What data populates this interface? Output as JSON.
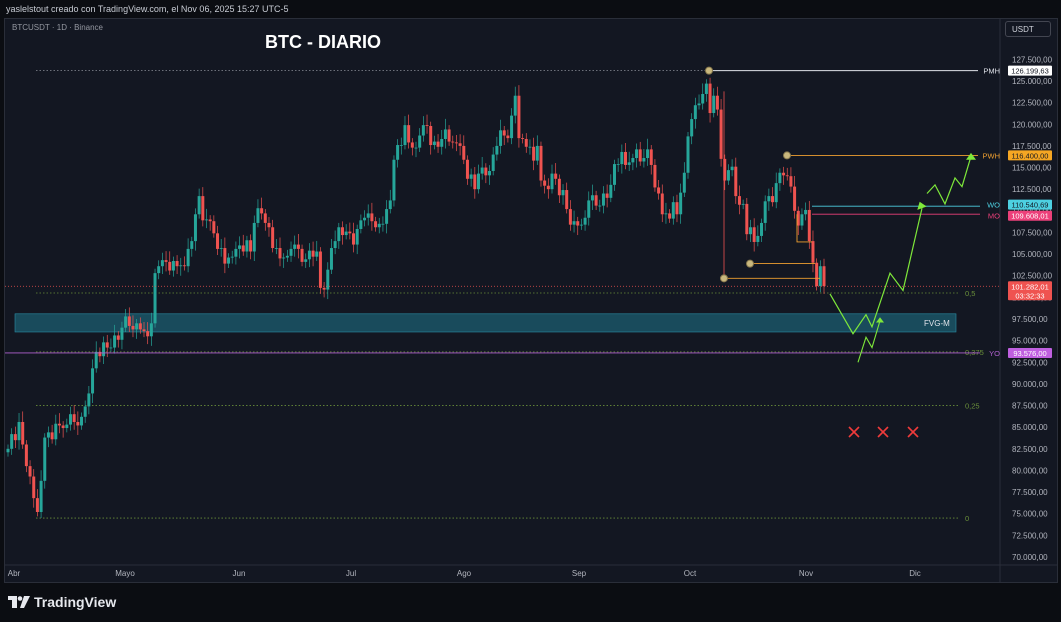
{
  "header": {
    "credit": "yaslelstout creado con TradingView.com, el Nov 06, 2025 15:27 UTC-5"
  },
  "symbol_line": "BTCUSDT · 1D · Binance",
  "chart_title": "BTC - DIARIO",
  "currency_button": "USDT",
  "brand": "TradingView",
  "colors": {
    "background": "#131722",
    "up": "#26a69a",
    "down": "#ef5350",
    "fvg": "#1d5a6a",
    "arrow": "#7ee83a"
  },
  "chart_data": {
    "type": "candlestick",
    "x_tick_labels": [
      "Abr",
      "Mayo",
      "Jun",
      "Jul",
      "Ago",
      "Sep",
      "Oct",
      "Nov",
      "Dic"
    ],
    "y_tick_labels": [
      "127.500,00",
      "125.000,00",
      "122.500,00",
      "120.000,00",
      "117.500,00",
      "115.000,00",
      "112.500,00",
      "110.000,00",
      "107.500,00",
      "105.000,00",
      "102.500,00",
      "100.000,00",
      "97.500,00",
      "95.000,00",
      "92.500,00",
      "90.000,00",
      "87.500,00",
      "85.000,00",
      "82.500,00",
      "80.000,00",
      "77.500,00",
      "75.000,00",
      "72.500,00",
      "70.000,00"
    ],
    "y_ticks": [
      127500,
      125000,
      122500,
      120000,
      117500,
      115000,
      112500,
      110000,
      107500,
      105000,
      102500,
      100000,
      97500,
      95000,
      92500,
      90000,
      87500,
      85000,
      82500,
      80000,
      77500,
      75000,
      72500,
      70000
    ],
    "ylim": [
      68000,
      130000
    ],
    "price_labels": [
      {
        "tag": "PMH",
        "label": "126.199,63",
        "value": 126199.63
      },
      {
        "tag": "PWH",
        "label": "116.400,00",
        "value": 116400
      },
      {
        "tag": "WO",
        "label": "110.540,69",
        "value": 110540.69
      },
      {
        "tag": "MO",
        "label": "109.608,01",
        "value": 109608.01
      },
      {
        "tag": "",
        "label": "101.282,01",
        "value": 101282.01,
        "sub": "03:32:33"
      },
      {
        "tag": "YO",
        "label": "93.576,00",
        "value": 93576
      }
    ],
    "fib_levels": [
      {
        "label": "0,5",
        "value": 100500
      },
      {
        "label": "0,375",
        "value": 93700
      },
      {
        "label": "0,25",
        "value": 87500
      },
      {
        "label": "0",
        "value": 74500
      }
    ],
    "fvg_zone": {
      "label": "FVG-M",
      "top": 98100,
      "bottom": 96000
    },
    "closes": [
      82500,
      84200,
      83500,
      85600,
      83000,
      80500,
      79300,
      76800,
      75200,
      78800,
      83800,
      84400,
      83600,
      85400,
      85200,
      84900,
      85300,
      86500,
      85600,
      85200,
      86200,
      87400,
      88900,
      91800,
      93700,
      93200,
      94800,
      94200,
      94200,
      95600,
      95100,
      96500,
      97800,
      96700,
      96300,
      97000,
      96300,
      96100,
      95500,
      97000,
      102800,
      103600,
      104300,
      104100,
      103100,
      104200,
      103600,
      103700,
      103600,
      105600,
      106500,
      109600,
      111700,
      108900,
      109000,
      108800,
      107400,
      105600,
      105700,
      103900,
      104600,
      104700,
      105600,
      106000,
      105300,
      106600,
      105300,
      108600,
      110300,
      109700,
      108600,
      108100,
      105700,
      105700,
      104500,
      104600,
      104800,
      105600,
      106100,
      105600,
      104100,
      104400,
      105400,
      104700,
      105300,
      101100,
      100900,
      103200,
      105700,
      106500,
      108100,
      107200,
      107600,
      107400,
      106100,
      107900,
      108900,
      109200,
      109700,
      108800,
      108100,
      108500,
      108500,
      110200,
      111200,
      115900,
      117600,
      117600,
      119900,
      117900,
      117300,
      117300,
      118700,
      119900,
      119800,
      117600,
      118000,
      117400,
      118300,
      119400,
      118000,
      117900,
      117800,
      117500,
      115900,
      113700,
      114200,
      112500,
      114300,
      115000,
      114100,
      114600,
      116500,
      117500,
      119300,
      118700,
      118400,
      121000,
      123300,
      118400,
      118300,
      117400,
      117400,
      115800,
      117500,
      113500,
      112900,
      112500,
      114300,
      113700,
      111800,
      112400,
      110200,
      108400,
      108800,
      108300,
      108400,
      109200,
      111200,
      111800,
      110600,
      110600,
      112000,
      111500,
      113000,
      115400,
      115400,
      116800,
      115300,
      115600,
      116100,
      117100,
      115700,
      116100,
      117100,
      115300,
      112700,
      112000,
      109600,
      109700,
      109100,
      111000,
      109600,
      112100,
      114400,
      118600,
      120600,
      122200,
      122400,
      123500,
      124700,
      121300,
      123300,
      121700,
      116000,
      113500,
      114700,
      115100,
      111700,
      110700,
      110800,
      107300,
      108100,
      106400,
      107100,
      108600,
      111100,
      111700,
      111000,
      113200,
      114400,
      114100,
      114000,
      112800,
      110000,
      108300,
      109600,
      110100,
      106500,
      104000,
      101300,
      103600,
      101300
    ]
  }
}
